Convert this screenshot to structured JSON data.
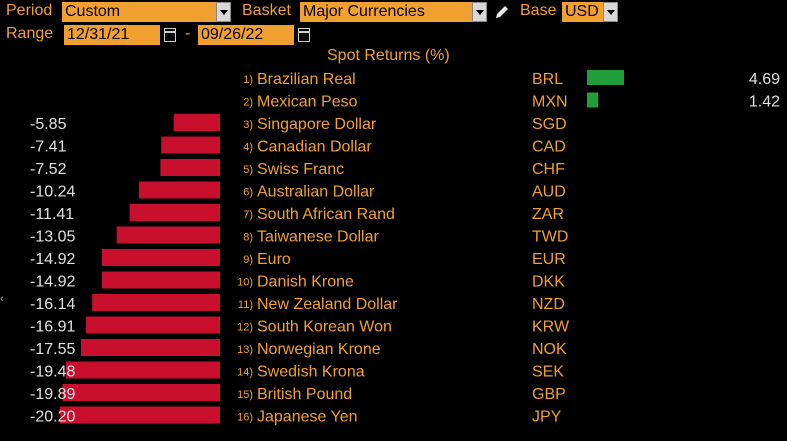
{
  "toolbar": {
    "period_label": "Period",
    "period_value": "Custom",
    "basket_label": "Basket",
    "basket_value": "Major Currencies",
    "base_label": "Base",
    "base_value": "USD",
    "range_label": "Range",
    "range_start": "12/31/21",
    "range_sep": "-",
    "range_end": "09/26/22"
  },
  "colors": {
    "negative_bar": "#c8102e",
    "positive_bar": "#1f9e3a",
    "label_text": "#f0a030",
    "value_text": "#e0e0e0"
  },
  "chart_data": {
    "type": "bar",
    "title": "Spot Returns (%)",
    "orientation": "horizontal",
    "categories": [
      "Brazilian Real",
      "Mexican Peso",
      "Singapore Dollar",
      "Canadian Dollar",
      "Swiss Franc",
      "Australian Dollar",
      "South African Rand",
      "Taiwanese Dollar",
      "Euro",
      "Danish Krone",
      "New Zealand Dollar",
      "South Korean Won",
      "Norwegian Krone",
      "Swedish Krona",
      "British Pound",
      "Japanese Yen"
    ],
    "codes": [
      "BRL",
      "MXN",
      "SGD",
      "CAD",
      "CHF",
      "AUD",
      "ZAR",
      "TWD",
      "EUR",
      "DKK",
      "NZD",
      "KRW",
      "NOK",
      "SEK",
      "GBP",
      "JPY"
    ],
    "ranks": [
      "1)",
      "2)",
      "3)",
      "4)",
      "5)",
      "6)",
      "7)",
      "8)",
      "9)",
      "10)",
      "11)",
      "12)",
      "13)",
      "14)",
      "15)",
      "16)"
    ],
    "values": [
      4.69,
      1.42,
      -5.85,
      -7.41,
      -7.52,
      -10.24,
      -11.41,
      -13.05,
      -14.92,
      -14.92,
      -16.14,
      -16.91,
      -17.55,
      -19.48,
      -19.89,
      -20.2
    ],
    "labels": [
      "4.69",
      "1.42",
      "-5.85",
      "-7.41",
      "-7.52",
      "-10.24",
      "-11.41",
      "-13.05",
      "-14.92",
      "-14.92",
      "-16.14",
      "-16.91",
      "-17.55",
      "-19.48",
      "-19.89",
      "-20.20"
    ]
  }
}
